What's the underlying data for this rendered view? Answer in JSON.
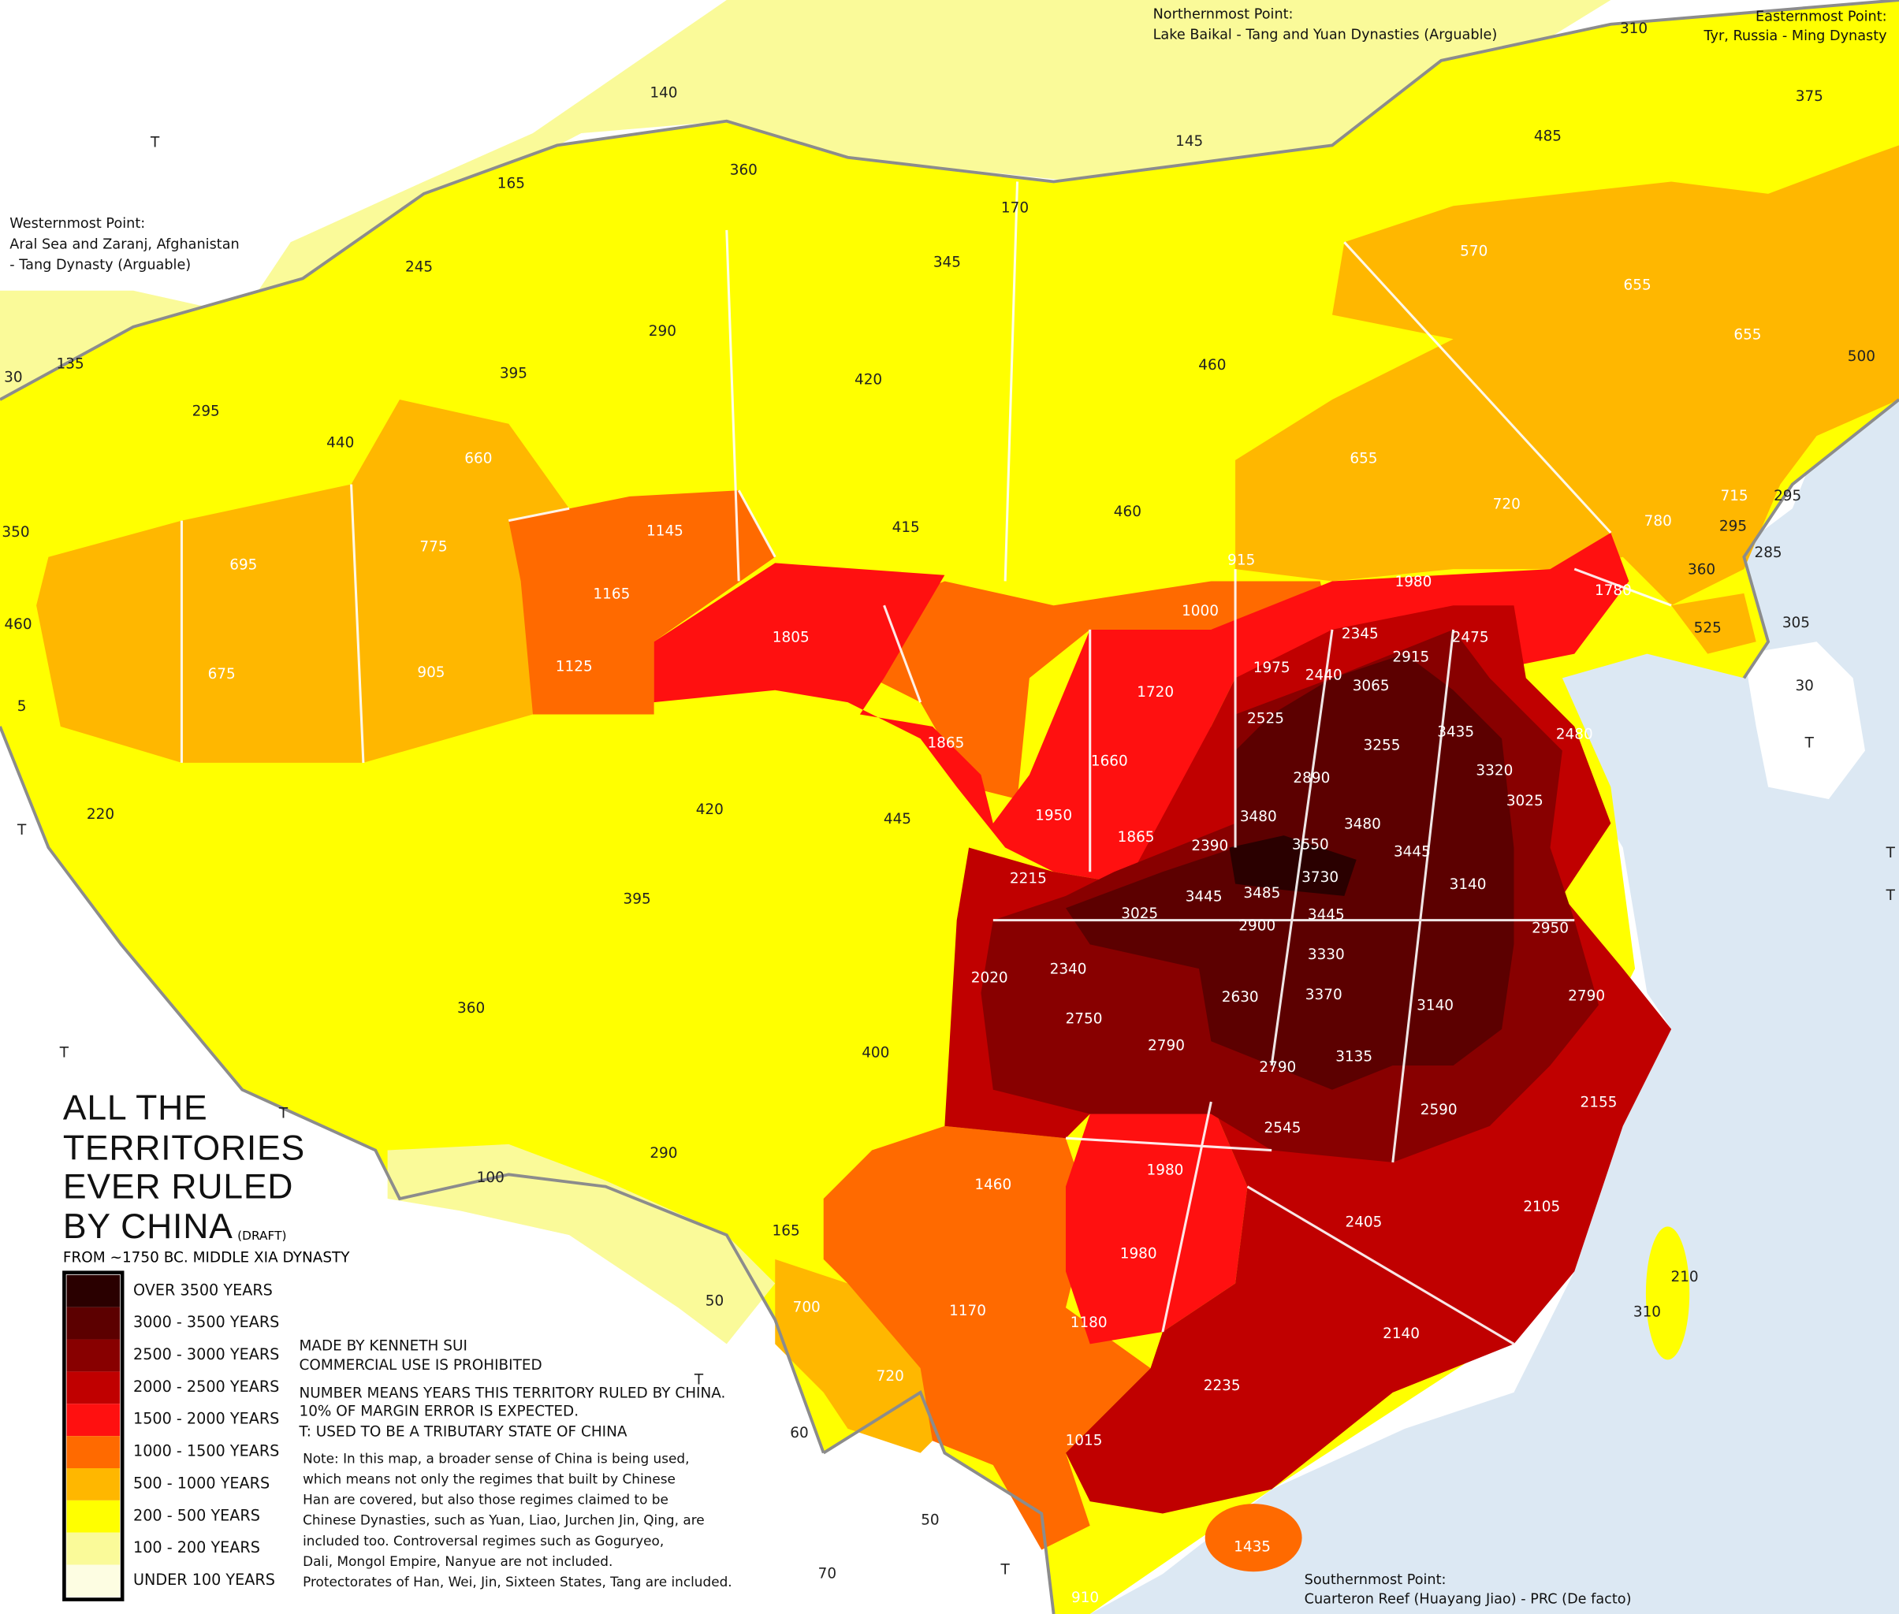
{
  "annotations": {
    "north": [
      "Northernmost Point:",
      "Lake Baikal - Tang and Yuan Dynasties (Arguable)"
    ],
    "east": [
      "Easternmost Point:",
      "Tyr, Russia - Ming Dynasty"
    ],
    "west": [
      "Westernmost Point:",
      "Aral Sea and Zaranj, Afghanistan",
      "- Tang Dynasty (Arguable)"
    ],
    "south": [
      "Southernmost Point:",
      "Cuarteron Reef (Huayang Jiao) - PRC (De facto)"
    ]
  },
  "title": {
    "lines": [
      "ALL THE",
      "TERRITORIES",
      "EVER RULED",
      "BY CHINA"
    ],
    "draft": "(DRAFT)",
    "subtitle": "FROM ~1750 BC. MIDDLE XIA DYNASTY"
  },
  "legend": [
    {
      "label": "OVER 3500 YEARS",
      "color": "#2a0000"
    },
    {
      "label": "3000 - 3500 YEARS",
      "color": "#5c0000"
    },
    {
      "label": "2500 - 3000 YEARS",
      "color": "#880000"
    },
    {
      "label": "2000 - 2500 YEARS",
      "color": "#c00000"
    },
    {
      "label": "1500 - 2000 YEARS",
      "color": "#ff1010"
    },
    {
      "label": "1000 - 1500 YEARS",
      "color": "#ff6a00"
    },
    {
      "label": "500 - 1000 YEARS",
      "color": "#ffb700"
    },
    {
      "label": "200 - 500 YEARS",
      "color": "#ffff00"
    },
    {
      "label": "100 - 200 YEARS",
      "color": "#fafa99"
    },
    {
      "label": "UNDER 100 YEARS",
      "color": "#fdfde2"
    }
  ],
  "credits": [
    "MADE BY KENNETH SUI",
    "COMMERCIAL USE IS PROHIBITED",
    "NUMBER MEANS YEARS THIS TERRITORY RULED BY CHINA.",
    "10% OF MARGIN ERROR IS EXPECTED.",
    "T: USED TO BE A TRIBUTARY STATE OF CHINA"
  ],
  "note": [
    "Note: In this map, a broader sense of China is being used,",
    "which means not only the regimes that built by Chinese",
    "Han are covered, but also those regimes claimed to be",
    "Chinese Dynasties, such as Yuan, Liao, Jurchen Jin, Qing, are",
    "included too. Controversal regimes such as Goguryeo,",
    "Dali, Mongol Empire, Nanyue are not included.",
    "Protectorates of Han, Wei, Jin, Sixteen States, Tang are included."
  ],
  "regions": [
    140,
    145,
    310,
    375,
    485,
    360,
    165,
    170,
    345,
    245,
    570,
    655,
    290,
    395,
    420,
    460,
    655,
    500,
    135,
    30,
    295,
    440,
    660,
    655,
    350,
    695,
    775,
    1145,
    415,
    460,
    720,
    715,
    295,
    780,
    295,
    285,
    915,
    360,
    460,
    1165,
    1000,
    1980,
    1780,
    525,
    305,
    675,
    905,
    1125,
    1805,
    2345,
    2475,
    2915,
    1975,
    2440,
    5,
    1720,
    3065,
    30,
    2525,
    1865,
    1660,
    3435,
    2480,
    3255,
    "T",
    3320,
    2890,
    220,
    420,
    445,
    1950,
    3025,
    1865,
    3480,
    3480,
    "T",
    3550,
    2390,
    3445,
    2215,
    3730,
    3140,
    3445,
    3485,
    395,
    3025,
    3445,
    2900,
    2950,
    "T",
    3330,
    2340,
    2020,
    360,
    2630,
    3370,
    3140,
    2790,
    2750,
    "T",
    2790,
    400,
    2790,
    3135,
    2155,
    2590,
    "T",
    2545,
    290,
    100,
    1980,
    1460,
    2105,
    2405,
    165,
    1980,
    210,
    50,
    700,
    310,
    1170,
    1180,
    2140,
    720,
    "T",
    2235,
    60,
    1015,
    50,
    1435,
    70,
    "T",
    910,
    "T",
    "T"
  ]
}
